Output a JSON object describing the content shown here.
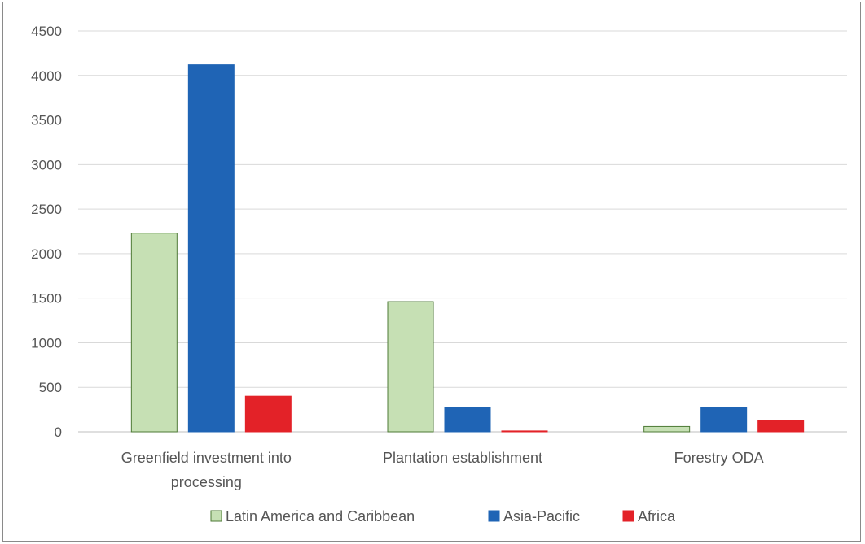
{
  "chart_data": {
    "type": "bar",
    "categories": [
      [
        "Greenfield investment into",
        "processing"
      ],
      [
        "Plantation establishment"
      ],
      [
        "Forestry ODA"
      ]
    ],
    "series": [
      {
        "name": "Latin America and Caribbean",
        "color": "#c6e0b4",
        "stroke": "#4e7a36",
        "values": [
          2230,
          1460,
          60
        ]
      },
      {
        "name": "Asia-Pacific",
        "color": "#1f64b5",
        "stroke": "#1f64b5",
        "values": [
          4120,
          270,
          270
        ]
      },
      {
        "name": "Africa",
        "color": "#e32228",
        "stroke": "#e32228",
        "values": [
          400,
          10,
          130
        ]
      }
    ],
    "ylim": [
      0,
      4500
    ],
    "yticks": [
      0,
      500,
      1000,
      1500,
      2000,
      2500,
      3000,
      3500,
      4000,
      4500
    ],
    "grid": true,
    "legend": "bottom"
  }
}
